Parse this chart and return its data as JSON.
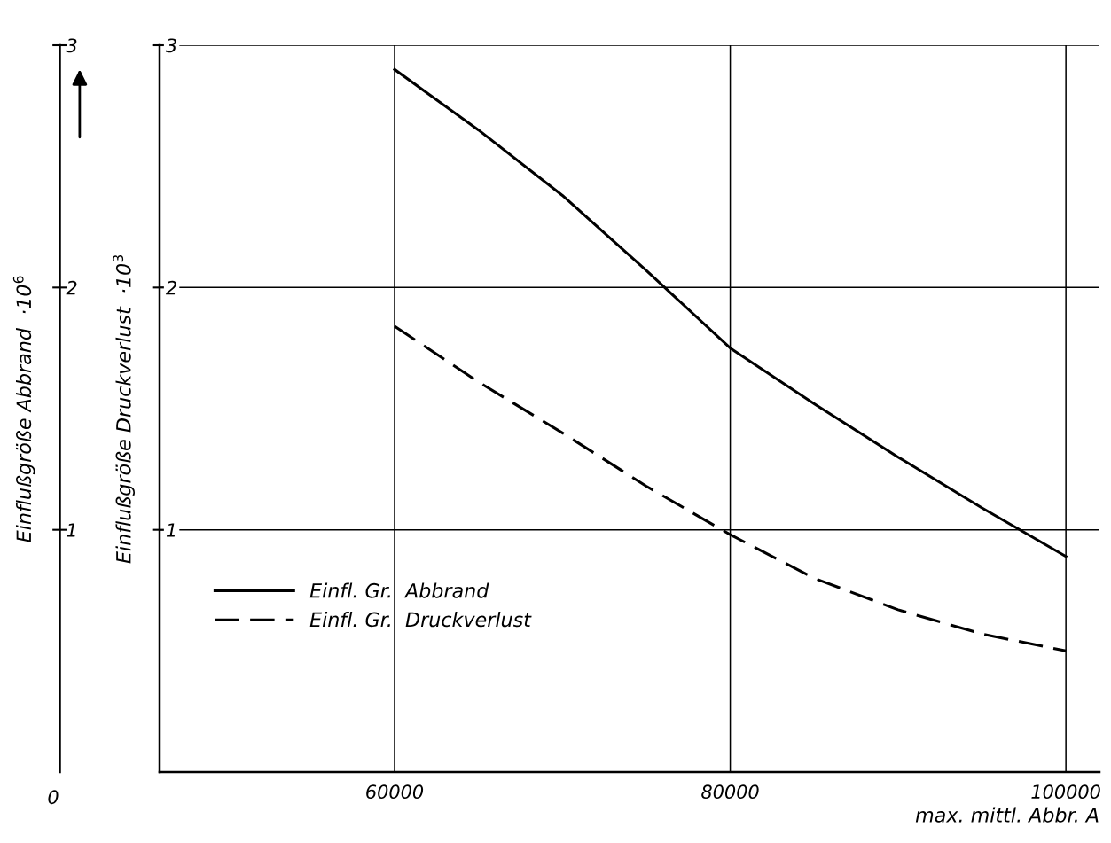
{
  "chart_data": {
    "type": "line",
    "xlabel": "max. mittl. Abbr. A",
    "ylabel": "Einflußgröße Druckverlust  ·10$^{3}$",
    "y2label": "Einflußgröße Abbrand  ·10$^{6}$",
    "xlim": [
      46000,
      102000
    ],
    "xticks": [
      60000,
      80000,
      100000
    ],
    "ylim": [
      0,
      3
    ],
    "yticks": [
      1,
      2,
      3
    ],
    "y2lim": [
      0,
      3
    ],
    "y2ticks": [
      1,
      2,
      3
    ],
    "grid": true,
    "legend": "bottom left",
    "annotations": [
      "0"
    ],
    "series": [
      {
        "name": "Einfl. Gr.  Abbrand",
        "color": "#000000",
        "line_style": "solid",
        "x": [
          60000,
          65000,
          70000,
          75000,
          80000,
          85000,
          90000,
          95000,
          100000
        ],
        "values": [
          2.9,
          2.65,
          2.38,
          2.07,
          1.75,
          1.52,
          1.3,
          1.09,
          0.89
        ]
      },
      {
        "name": "Einfl. Gr.  Druckverlust",
        "color": "#000000",
        "line_style": "dashed",
        "x": [
          60000,
          65000,
          70000,
          75000,
          80000,
          85000,
          90000,
          95000,
          100000
        ],
        "values": [
          1.84,
          1.61,
          1.4,
          1.18,
          0.98,
          0.8,
          0.67,
          0.57,
          0.5
        ]
      }
    ]
  }
}
